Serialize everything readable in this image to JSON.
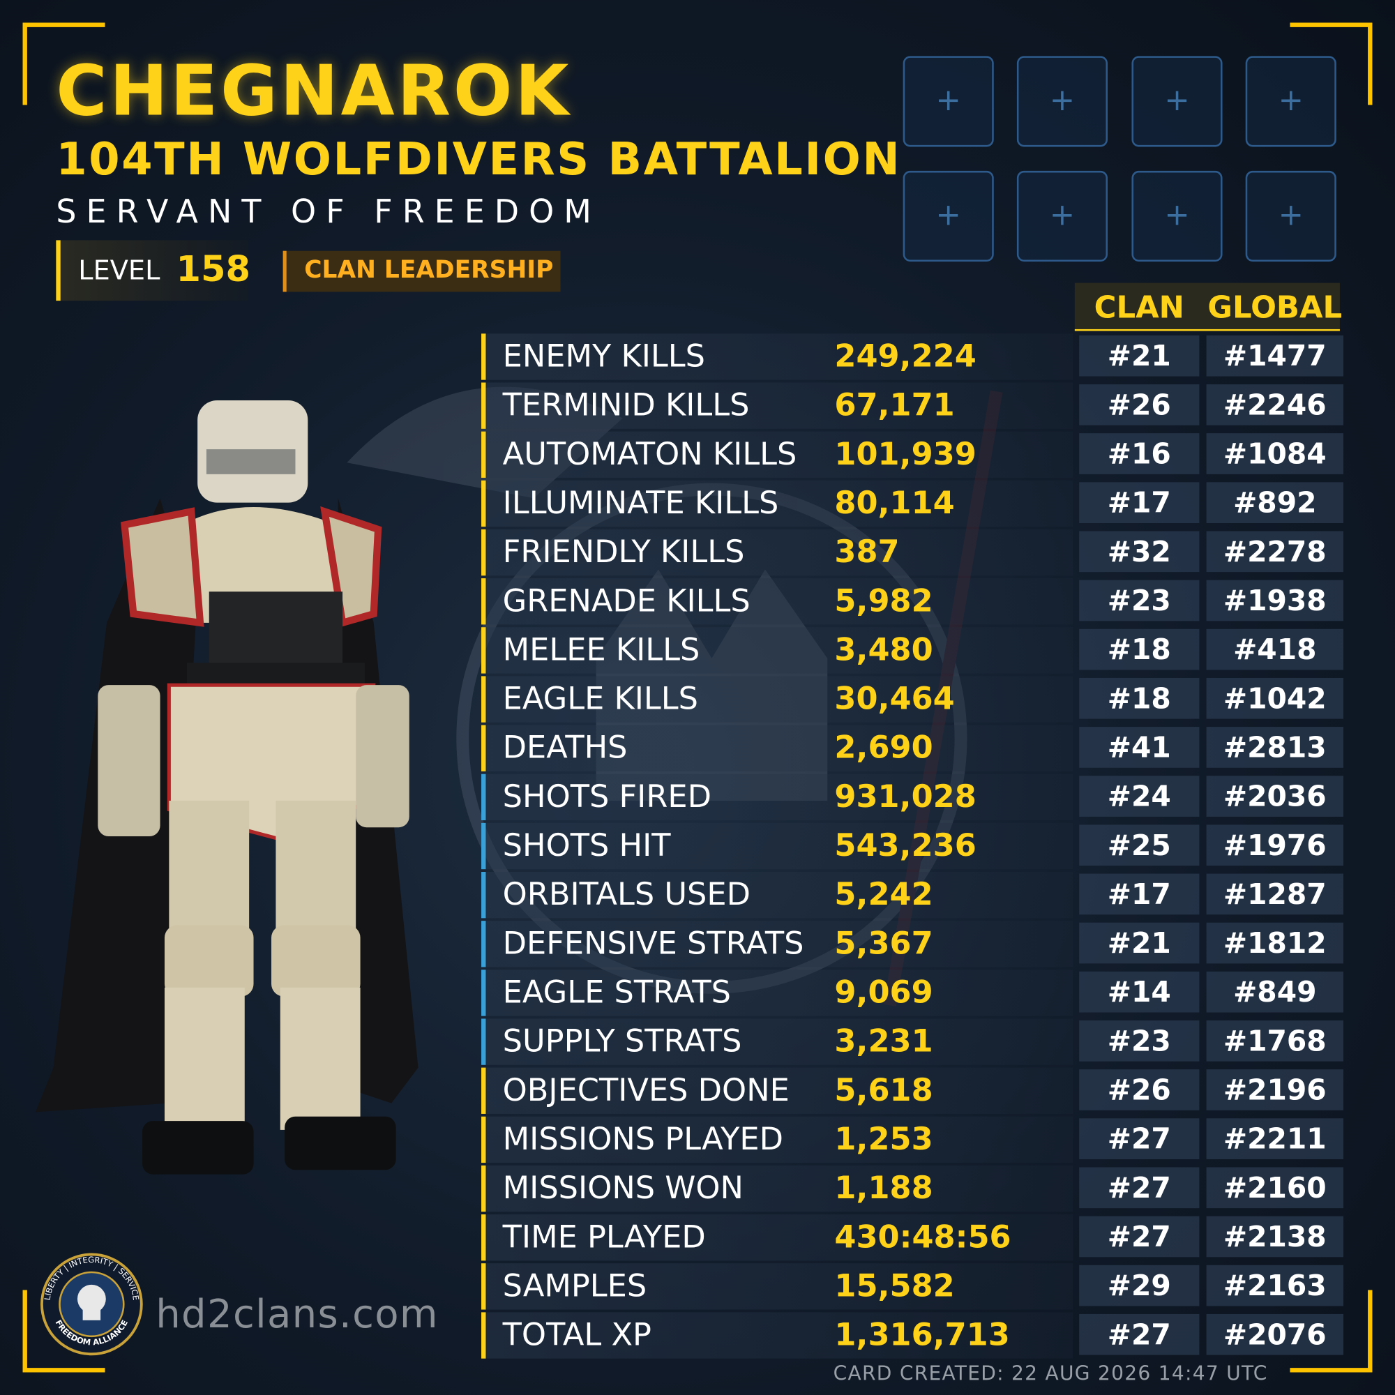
{
  "header": {
    "name": "CHEGNAROK",
    "clan": "104TH WOLFDIVERS BATTALION",
    "title": "SERVANT OF FREEDOM",
    "level_label": "LEVEL",
    "level": "158",
    "role": "CLAN LEADERSHIP"
  },
  "table": {
    "columns": [
      "CLAN",
      "GLOBAL"
    ],
    "rows": [
      [
        "ENEMY KILLS",
        "249,224",
        "#21",
        "#1477"
      ],
      [
        "TERMINID KILLS",
        "67,171",
        "#26",
        "#2246"
      ],
      [
        "AUTOMATON KILLS",
        "101,939",
        "#16",
        "#1084"
      ],
      [
        "ILLUMINATE KILLS",
        "80,114",
        "#17",
        "#892"
      ],
      [
        "FRIENDLY KILLS",
        "387",
        "#32",
        "#2278"
      ],
      [
        "GRENADE KILLS",
        "5,982",
        "#23",
        "#1938"
      ],
      [
        "MELEE KILLS",
        "3,480",
        "#18",
        "#418"
      ],
      [
        "EAGLE KILLS",
        "30,464",
        "#18",
        "#1042"
      ],
      [
        "DEATHS",
        "2,690",
        "#41",
        "#2813"
      ],
      [
        "SHOTS FIRED",
        "931,028",
        "#24",
        "#2036"
      ],
      [
        "SHOTS HIT",
        "543,236",
        "#25",
        "#1976"
      ],
      [
        "ORBITALS USED",
        "5,242",
        "#17",
        "#1287"
      ],
      [
        "DEFENSIVE STRATS",
        "5,367",
        "#21",
        "#1812"
      ],
      [
        "EAGLE STRATS",
        "9,069",
        "#14",
        "#849"
      ],
      [
        "SUPPLY STRATS",
        "3,231",
        "#23",
        "#1768"
      ],
      [
        "OBJECTIVES DONE",
        "5,618",
        "#26",
        "#2196"
      ],
      [
        "MISSIONS PLAYED",
        "1,253",
        "#27",
        "#2211"
      ],
      [
        "MISSIONS WON",
        "1,188",
        "#27",
        "#2160"
      ],
      [
        "TIME PLAYED",
        "430:48:56",
        "#27",
        "#2138"
      ],
      [
        "SAMPLES",
        "15,582",
        "#29",
        "#2163"
      ],
      [
        "TOTAL XP",
        "1,316,713",
        "#27",
        "#2076"
      ]
    ]
  },
  "logo": {
    "top": "LIBERTY | INTEGRITY | SERVICE",
    "bottom": "FREEDOM ALLIANCE"
  },
  "footer": {
    "site": "hd2clans.com",
    "created": "CARD CREATED: 22 AUG 2026 14:47 UTC"
  }
}
